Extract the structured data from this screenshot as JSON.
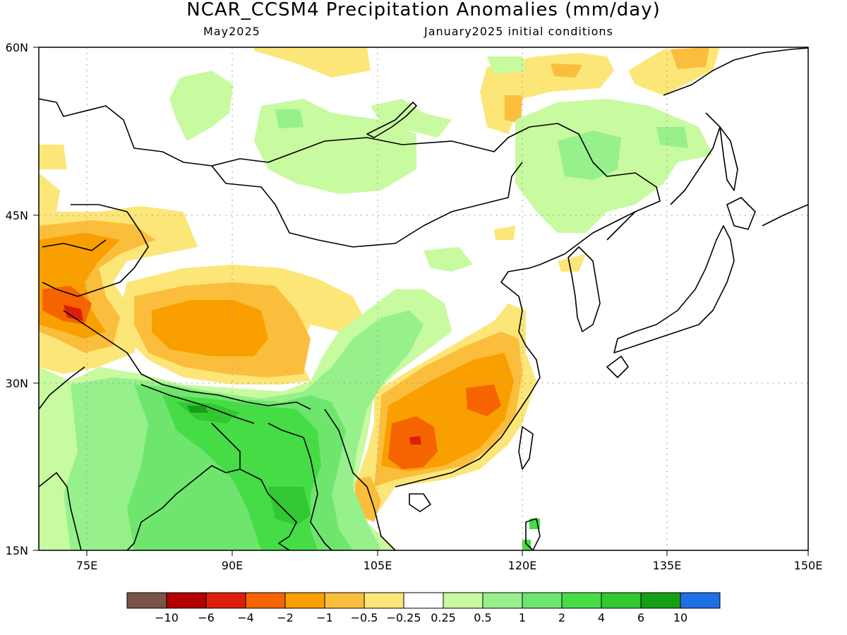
{
  "title": "NCAR_CCSM4 Precipitation Anomalies (mm/day)",
  "subtitle_left": "May2025",
  "subtitle_right": "January2025 initial conditions",
  "lat_labels": [
    "60N",
    "45N",
    "30N",
    "15N"
  ],
  "lon_labels": [
    "75E",
    "90E",
    "105E",
    "120E",
    "135E",
    "150E"
  ],
  "colorbar": {
    "colors": [
      "#7a5448",
      "#b40000",
      "#dc1e0a",
      "#f56400",
      "#fa9f00",
      "#fbbe3c",
      "#fce678",
      "#ffffff",
      "#c8faa0",
      "#96f08c",
      "#6ee66e",
      "#46dc46",
      "#32c832",
      "#14a014",
      "#1e6ee6"
    ],
    "labels": [
      "-10",
      "-6",
      "-4",
      "-2",
      "-1",
      "-0.5",
      "-0.25",
      "0.25",
      "0.5",
      "1",
      "2",
      "4",
      "6",
      "10"
    ]
  }
}
